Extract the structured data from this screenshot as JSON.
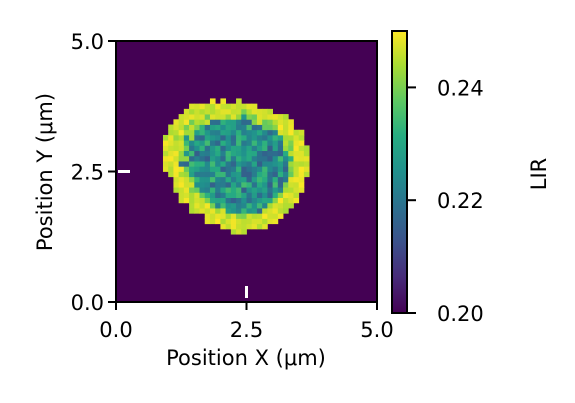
{
  "chart_data": {
    "type": "heatmap",
    "title": "",
    "xlabel": "Position X (μm)",
    "ylabel": "Position Y (μm)",
    "xlim": [
      0.0,
      5.0
    ],
    "ylim": [
      0.0,
      5.0
    ],
    "x_ticks": [
      "0.0",
      "2.5",
      "5.0"
    ],
    "y_ticks": [
      "0.0",
      "2.5",
      "5.0"
    ],
    "grid_size": 50,
    "colormap": "viridis",
    "colorbar": {
      "label": "LIR",
      "range": [
        0.2,
        0.25
      ],
      "ticks": [
        "0.20",
        "0.22",
        "0.24"
      ]
    },
    "region": {
      "background_value": 0.2,
      "shape": "blob",
      "center_um": [
        2.35,
        2.6
      ],
      "approx_extent_x_um": [
        1.15,
        3.75
      ],
      "approx_extent_y_um": [
        1.3,
        3.95
      ],
      "rim_value": 0.25,
      "interior_value_range": [
        0.215,
        0.235
      ]
    },
    "markers": [
      {
        "position": "x = 2.5 at bottom edge",
        "color": "#ffffff"
      },
      {
        "position": "y = 2.5 at left edge",
        "color": "#ffffff"
      }
    ]
  },
  "colors": {
    "viridis_low": "#440154",
    "viridis_mid": "#21908d",
    "viridis_high": "#fde725"
  }
}
